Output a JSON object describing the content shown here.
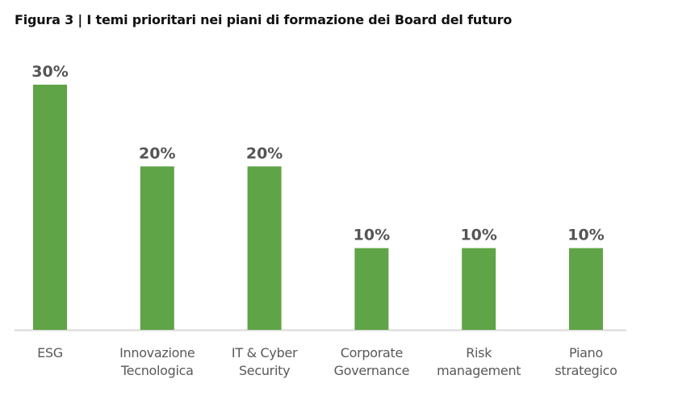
{
  "chart_data": {
    "type": "bar",
    "title": "Figura 3 | I temi prioritari nei piani di formazione dei Board del futuro",
    "categories": [
      [
        "ESG"
      ],
      [
        "Innovazione",
        "Tecnologica"
      ],
      [
        "IT & Cyber",
        "Security"
      ],
      [
        "Corporate",
        "Governance"
      ],
      [
        "Risk",
        "management"
      ],
      [
        "Piano",
        "strategico"
      ]
    ],
    "values": [
      30,
      20,
      20,
      10,
      10,
      10
    ],
    "value_labels": [
      "30%",
      "20%",
      "20%",
      "10%",
      "10%",
      "10%"
    ],
    "xlabel": "",
    "ylabel": "",
    "ylim": [
      0,
      30
    ],
    "grid": false,
    "colors": {
      "bar": "#5fa446",
      "label": "#555555",
      "axis": "#d9d9d9"
    }
  }
}
